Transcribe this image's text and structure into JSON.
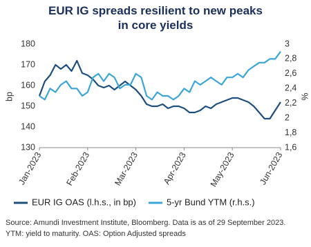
{
  "chart_data": {
    "type": "line",
    "title": [
      "EUR IG spreads resilient to new peaks",
      "in core yields"
    ],
    "ylabel": "bp",
    "y2label": "%",
    "categories": [
      "Jan-2023",
      null,
      null,
      null,
      null,
      null,
      null,
      null,
      null,
      "Feb-2023",
      null,
      null,
      null,
      null,
      null,
      null,
      null,
      null,
      "Mar-2023",
      null,
      null,
      null,
      null,
      null,
      null,
      null,
      null,
      "Apr-2023",
      null,
      null,
      null,
      null,
      null,
      null,
      null,
      null,
      "May-2023",
      null,
      null,
      null,
      null,
      null,
      null,
      null,
      null,
      "Jun-2023"
    ],
    "series": [
      {
        "name": "EUR IG OAS (l.h.s., in bp)",
        "color": "#1d4e7e",
        "axis": "y",
        "values": [
          155,
          162,
          165,
          170,
          168,
          170,
          167,
          172,
          166,
          165,
          163,
          160,
          159,
          160,
          158,
          160,
          162,
          160,
          158,
          155,
          151,
          150,
          150,
          151,
          149,
          150,
          150,
          149,
          147,
          147,
          148,
          150,
          149,
          151,
          152,
          153,
          154,
          154,
          153,
          152,
          150,
          147,
          144,
          144,
          148,
          152
        ]
      },
      {
        "name": "5-yr Bund YTM (r.h.s.)",
        "color": "#3aa5d8",
        "axis": "y2",
        "values": [
          2.3,
          2.25,
          2.4,
          2.35,
          2.45,
          2.5,
          2.4,
          2.4,
          2.3,
          2.35,
          2.55,
          2.6,
          2.5,
          2.6,
          2.55,
          2.4,
          2.45,
          2.45,
          2.6,
          2.55,
          2.3,
          2.25,
          2.35,
          2.3,
          2.3,
          2.25,
          2.3,
          2.4,
          2.35,
          2.5,
          2.45,
          2.5,
          2.55,
          2.5,
          2.45,
          2.55,
          2.55,
          2.6,
          2.55,
          2.65,
          2.7,
          2.75,
          2.75,
          2.8,
          2.8,
          2.9
        ]
      }
    ],
    "ylim": [
      130,
      180
    ],
    "yticks": [
      130,
      140,
      150,
      160,
      170,
      180
    ],
    "y2lim": [
      1.6,
      3
    ],
    "y2ticks": [
      {
        "value": 1.6,
        "label": "1,6"
      },
      {
        "value": 1.8,
        "label": "1,8"
      },
      2,
      {
        "value": 2.2,
        "label": "2,2"
      },
      {
        "value": 2.4,
        "label": "2,4"
      },
      {
        "value": 2.6,
        "label": "2,6"
      },
      {
        "value": 2.8,
        "label": "2,8"
      },
      3
    ],
    "grid": false,
    "legend": "bottom",
    "source": [
      "Source: Amundi Investment Institute, Bloomberg. Data is as of 29 September 2023.",
      "YTM: yield to maturity. OAS: Option Adjusted spreads"
    ]
  }
}
